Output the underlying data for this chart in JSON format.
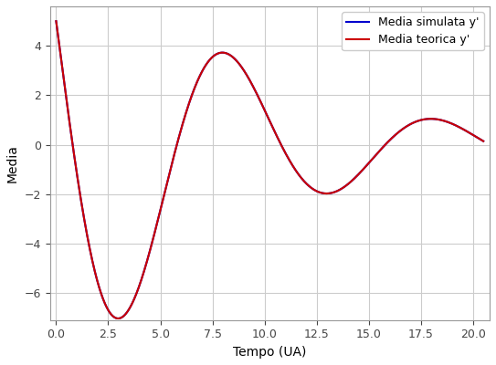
{
  "xlabel": "Tempo (UA)",
  "ylabel": "Media",
  "legend_label_simulated": "Media simulata y'",
  "legend_label_theoretical": "Media teorica y'",
  "line_color_simulated": "#0000cd",
  "line_color_theoretical": "#cc0000",
  "xlim": [
    -0.3,
    20.8
  ],
  "ylim": [
    -7.1,
    5.6
  ],
  "xticks": [
    0.0,
    2.5,
    5.0,
    7.5,
    10.0,
    12.5,
    15.0,
    17.5,
    20.0
  ],
  "yticks": [
    -6,
    -4,
    -2,
    0,
    2,
    4
  ],
  "grid_color": "#cccccc",
  "background_color": "#ffffff",
  "figsize": [
    5.43,
    4.0
  ],
  "dpi": 100,
  "A": 5.0,
  "B": -9.5,
  "damping": 0.13,
  "omega": 0.628,
  "t_start": 0.0,
  "t_end": 20.5,
  "n_points": 3000
}
